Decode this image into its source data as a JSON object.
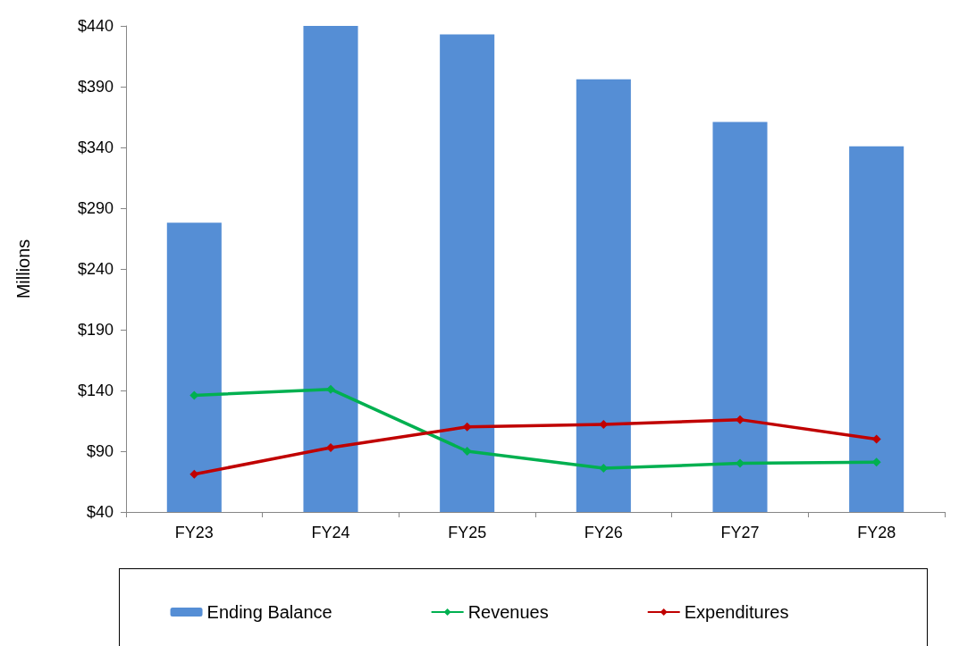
{
  "chart_data": {
    "type": "bar",
    "ylabel": "Millions",
    "categories": [
      "FY23",
      "FY24",
      "FY25",
      "FY26",
      "FY27",
      "FY28"
    ],
    "series": [
      {
        "name": "Ending Balance",
        "color": "#558ed5",
        "values": [
          278,
          440,
          433,
          396,
          361,
          341
        ]
      },
      {
        "name": "Revenues",
        "type": "line",
        "color": "#00b050",
        "values": [
          136,
          141,
          90,
          76,
          80,
          81
        ]
      },
      {
        "name": "Expenditures",
        "type": "line",
        "color": "#c00000",
        "values": [
          71,
          93,
          110,
          112,
          116,
          100
        ]
      }
    ],
    "ylim": [
      40,
      440
    ],
    "yticks": [
      {
        "value": 40,
        "label": "$40"
      },
      {
        "value": 90,
        "label": "$90"
      },
      {
        "value": 140,
        "label": "$140"
      },
      {
        "value": 190,
        "label": "$190"
      },
      {
        "value": 240,
        "label": "$240"
      },
      {
        "value": 290,
        "label": "$290"
      },
      {
        "value": 340,
        "label": "$340"
      },
      {
        "value": 390,
        "label": "$390"
      },
      {
        "value": 440,
        "label": "$440"
      }
    ],
    "grid": false,
    "legend": "bottom",
    "marker": "diamond"
  }
}
